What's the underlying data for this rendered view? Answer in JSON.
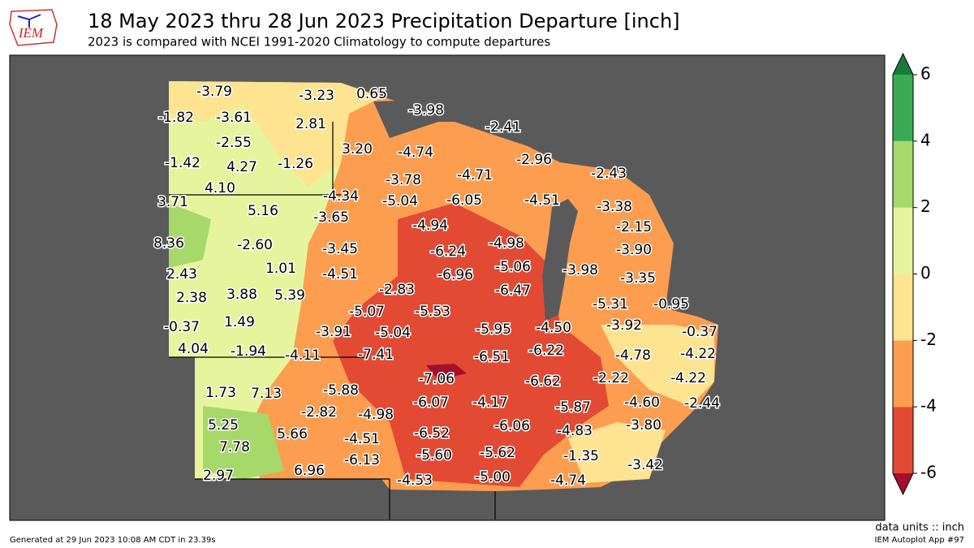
{
  "header": {
    "logo": "IEM",
    "title": "18 May 2023 thru 28 Jun 2023 Precipitation Departure [inch]",
    "subtitle": "2023 is compared with NCEI 1991-2020 Climatology to compute departures"
  },
  "stations": [
    "-3.79",
    "-3.23",
    "0.65",
    "-3.98",
    "-1.82",
    "-3.61",
    "2.81",
    "-2.41",
    "-2.55",
    "3.20",
    "-4.74",
    "-2.96",
    "-1.42",
    "4.27",
    "-1.26",
    "-4.71",
    "-2.43",
    "4.10",
    "-3.78",
    "-4.34",
    "-5.04",
    "-6.05",
    "-4.51",
    "-3.38",
    "3.71",
    "5.16",
    "-3.65",
    "-2.15",
    "-4.94",
    "8.36",
    "-2.60",
    "-3.45",
    "-6.24",
    "-4.98",
    "-3.90",
    "1.01",
    "-4.51",
    "-5.06",
    "-3.98",
    "2.43",
    "-6.96",
    "-3.35",
    "-2.83",
    "-6.47",
    "2.38",
    "3.88",
    "5.39",
    "-5.31",
    "-0.95",
    "-5.07",
    "-5.53",
    "-0.37",
    "1.49",
    "-3.91",
    "-5.04",
    "-5.95",
    "-4.50",
    "-3.92",
    "-0.37",
    "4.04",
    "-1.94",
    "-4.11",
    "-7.41",
    "-6.51",
    "-6.22",
    "-4.78",
    "-4.22",
    "-7.06",
    "-6.62",
    "-2.22",
    "-4.22",
    "1.73",
    "7.13",
    "-5.88",
    "-6.07",
    "-4.17",
    "-5.87",
    "-4.60",
    "-2.44",
    "-2.82",
    "-4.98",
    "5.25",
    "5.66",
    "-6.52",
    "-6.06",
    "-4.83",
    "-3.80",
    "7.78",
    "-4.51",
    "-5.60",
    "-5.62",
    "-1.35",
    "-6.13",
    "-3.42",
    "2.97",
    "6.96",
    "-5.00",
    "-4.53",
    "-4.74"
  ],
  "colorbar": {
    "range": [
      -6,
      6
    ],
    "ticks": [
      6,
      4,
      2,
      0,
      -2,
      -4,
      -6
    ],
    "colors": [
      "#e34a33",
      "#fc9d4f",
      "#fee391",
      "#e6f59d",
      "#a6d96a",
      "#3aaa55"
    ],
    "over": "#1a7a3e",
    "under": "#a50f2d"
  },
  "footer": {
    "units": "data units :: inch",
    "generated": "Generated at 29 Jun 2023 10:08 AM CDT in 23.39s",
    "app": "IEM Autoplot App #97"
  }
}
